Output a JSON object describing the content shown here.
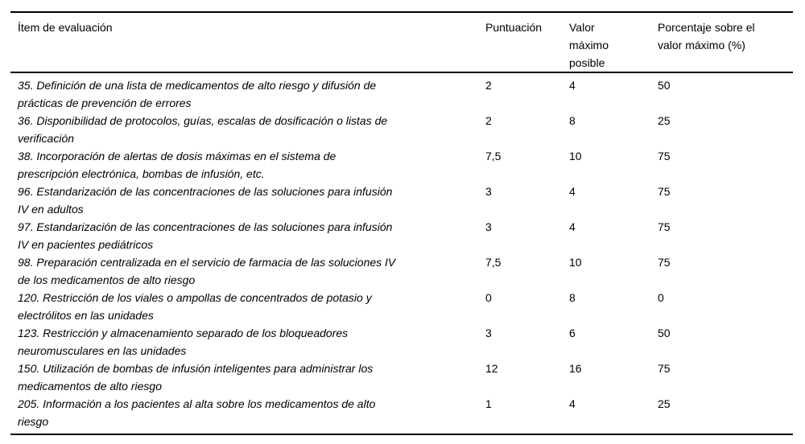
{
  "table": {
    "headers": {
      "item": "Ítem de evaluación",
      "score": "Puntuación",
      "max": "Valor\nmáximo\nposible",
      "pct": "Porcentaje sobre el\nvalor máximo (%)"
    },
    "rows": [
      {
        "item": "35. Definición de una lista de medicamentos de alto riesgo y difusión de\nprácticas de prevención de errores",
        "score": "2",
        "max": "4",
        "pct": "50"
      },
      {
        "item": "36. Disponibilidad de protocolos, guías, escalas de dosificación o listas de\nverificación",
        "score": "2",
        "max": "8",
        "pct": "25"
      },
      {
        "item": "38. Incorporación de alertas de dosis máximas en el sistema de\nprescripción electrónica, bombas de infusión, etc.",
        "score": "7,5",
        "max": "10",
        "pct": "75"
      },
      {
        "item": "96. Estandarización de las concentraciones de las soluciones para infusión\nIV en adultos",
        "score": "3",
        "max": "4",
        "pct": "75"
      },
      {
        "item": "97. Estandarización de las concentraciones de las soluciones para infusión\nIV en pacientes pediátricos",
        "score": "3",
        "max": "4",
        "pct": "75"
      },
      {
        "item": "98. Preparación centralizada en el servicio de farmacia de las soluciones IV\nde los medicamentos de alto riesgo",
        "score": "7,5",
        "max": "10",
        "pct": "75"
      },
      {
        "item": "120. Restricción de los viales o ampollas de concentrados de potasio y\nelectrólitos en las unidades",
        "score": "0",
        "max": "8",
        "pct": "0"
      },
      {
        "item": "123. Restricción y almacenamiento separado de los bloqueadores\nneuromusculares en las unidades",
        "score": "3",
        "max": "6",
        "pct": "50"
      },
      {
        "item": "150. Utilización de bombas de infusión inteligentes para administrar los\nmedicamentos de alto riesgo",
        "score": "12",
        "max": "16",
        "pct": "75"
      },
      {
        "item": "205. Información a los pacientes al alta sobre los medicamentos de alto\nriesgo",
        "score": "1",
        "max": "4",
        "pct": "25"
      }
    ]
  }
}
